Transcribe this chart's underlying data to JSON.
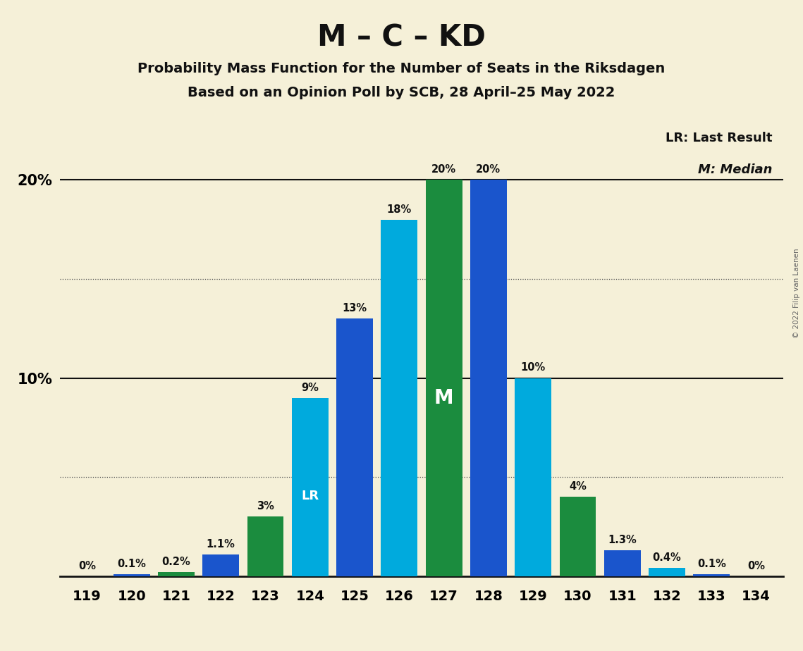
{
  "title": "M – C – KD",
  "subtitle1": "Probability Mass Function for the Number of Seats in the Riksdagen",
  "subtitle2": "Based on an Opinion Poll by SCB, 28 April–25 May 2022",
  "copyright": "© 2022 Filip van Laenen",
  "seats": [
    119,
    120,
    121,
    122,
    123,
    124,
    125,
    126,
    127,
    128,
    129,
    130,
    131,
    132,
    133,
    134
  ],
  "values": [
    0.0,
    0.1,
    0.2,
    1.1,
    3.0,
    9.0,
    13.0,
    18.0,
    20.0,
    20.0,
    10.0,
    4.0,
    1.3,
    0.4,
    0.1,
    0.0
  ],
  "labels": [
    "0%",
    "0.1%",
    "0.2%",
    "1.1%",
    "3%",
    "9%",
    "13%",
    "18%",
    "20%",
    "20%",
    "10%",
    "4%",
    "1.3%",
    "0.4%",
    "0.1%",
    "0%"
  ],
  "colors": [
    "#1b8c3e",
    "#1a55cc",
    "#1b8c3e",
    "#1a55cc",
    "#1b8c3e",
    "#00aadd",
    "#1a55cc",
    "#00aadd",
    "#1b8c3e",
    "#1a55cc",
    "#00aadd",
    "#1b8c3e",
    "#1a55cc",
    "#00aadd",
    "#1a55cc",
    "#00aadd"
  ],
  "lr_index": 5,
  "median_index": 8,
  "background_color": "#f5f0d8",
  "ylim_max": 23.0,
  "solid_hlines": [
    10.0,
    20.0
  ],
  "dotted_hlines": [
    5.0,
    15.0
  ],
  "legend_lr": "LR: Last Result",
  "legend_m": "M: Median",
  "ytick_vals": [
    10,
    20
  ],
  "ytick_labels": [
    "10%",
    "20%"
  ],
  "bar_width": 0.82
}
